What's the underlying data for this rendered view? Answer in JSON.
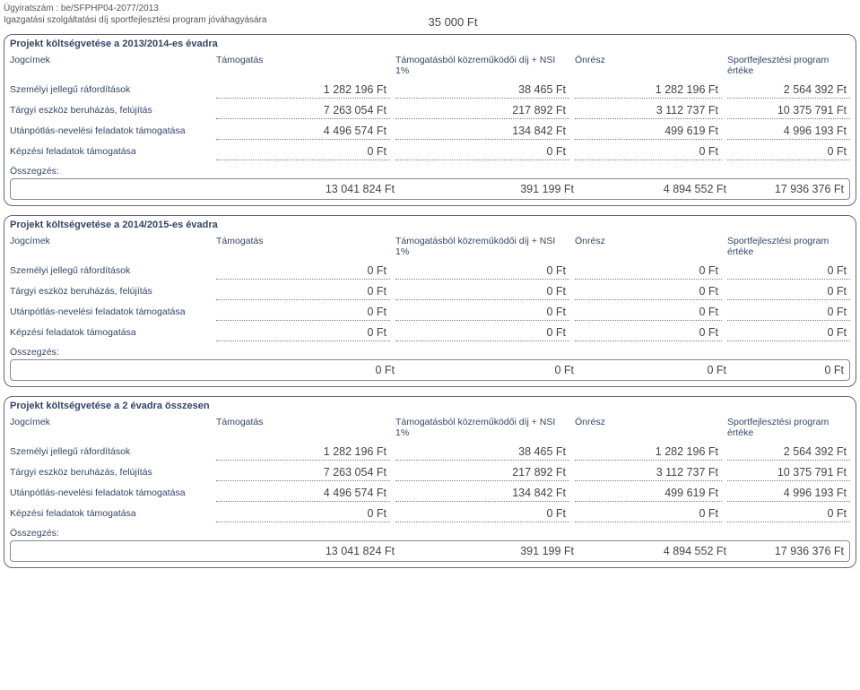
{
  "doc": {
    "reference": "Ügyiratszám : be/SFPHP04-2077/2013",
    "admin_fee_label": "Igazgatási szolgáltatási díj sportfejlesztési program jóváhagyására",
    "admin_fee_value": "35 000 Ft"
  },
  "labels": {
    "jogcimek": "Jogcímek",
    "tamogatas": "Támogatás",
    "kozremukodoi": "Támogatásból közreműködői díj + NSI 1%",
    "onresz": "Önrész",
    "program_ertek": "Sportfejlesztési program értéke",
    "osszegzes": "Összegzés:",
    "row_szemelyi": "Személyi jellegű ráfordítások",
    "row_targyi": "Tárgyi eszköz beruházás, felújítás",
    "row_utanpotlas": "Utánpótlás-nevelési feladatok támogatása",
    "row_kepzesi": "Képzési feladatok támogatása"
  },
  "sections": [
    {
      "title": "Projekt költségvetése a 2013/2014-es évadra",
      "rows": [
        {
          "label_key": "row_szemelyi",
          "t": "1 282 196 Ft",
          "k": "38 465 Ft",
          "o": "1 282 196 Ft",
          "s": "2 564 392 Ft"
        },
        {
          "label_key": "row_targyi",
          "t": "7 263 054 Ft",
          "k": "217 892 Ft",
          "o": "3 112 737 Ft",
          "s": "10 375 791 Ft"
        },
        {
          "label_key": "row_utanpotlas",
          "t": "4 496 574 Ft",
          "k": "134 842 Ft",
          "o": "499 619 Ft",
          "s": "4 996 193 Ft"
        },
        {
          "label_key": "row_kepzesi",
          "t": "0 Ft",
          "k": "0 Ft",
          "o": "0 Ft",
          "s": "0 Ft"
        }
      ],
      "summary": {
        "t": "13 041 824 Ft",
        "k": "391 199 Ft",
        "o": "4 894 552 Ft",
        "s": "17 936 376 Ft"
      }
    },
    {
      "title": "Projekt költségvetése a 2014/2015-es évadra",
      "rows": [
        {
          "label_key": "row_szemelyi",
          "t": "0 Ft",
          "k": "0 Ft",
          "o": "0 Ft",
          "s": "0 Ft"
        },
        {
          "label_key": "row_targyi",
          "t": "0 Ft",
          "k": "0 Ft",
          "o": "0 Ft",
          "s": "0 Ft"
        },
        {
          "label_key": "row_utanpotlas",
          "t": "0 Ft",
          "k": "0 Ft",
          "o": "0 Ft",
          "s": "0 Ft"
        },
        {
          "label_key": "row_kepzesi",
          "t": "0 Ft",
          "k": "0 Ft",
          "o": "0 Ft",
          "s": "0 Ft"
        }
      ],
      "summary": {
        "t": "0 Ft",
        "k": "0 Ft",
        "o": "0 Ft",
        "s": "0 Ft"
      }
    },
    {
      "title": "Projekt költségvetése a 2 évadra összesen",
      "rows": [
        {
          "label_key": "row_szemelyi",
          "t": "1 282 196 Ft",
          "k": "38 465 Ft",
          "o": "1 282 196 Ft",
          "s": "2 564 392 Ft"
        },
        {
          "label_key": "row_targyi",
          "t": "7 263 054 Ft",
          "k": "217 892 Ft",
          "o": "3 112 737 Ft",
          "s": "10 375 791 Ft"
        },
        {
          "label_key": "row_utanpotlas",
          "t": "4 496 574 Ft",
          "k": "134 842 Ft",
          "o": "499 619 Ft",
          "s": "4 996 193 Ft"
        },
        {
          "label_key": "row_kepzesi",
          "t": "0 Ft",
          "k": "0 Ft",
          "o": "0 Ft",
          "s": "0 Ft"
        }
      ],
      "summary": {
        "t": "13 041 824 Ft",
        "k": "391 199 Ft",
        "o": "4 894 552 Ft",
        "s": "17 936 376 Ft"
      }
    }
  ],
  "style": {
    "accent_color": "#334466",
    "border_color": "#667788",
    "dotted_color": "#7a7a9a",
    "value_color": "#444444",
    "label_color": "#555555",
    "value_fontsize": 12.5,
    "label_fontsize": 10.5,
    "section_radius": 10
  }
}
